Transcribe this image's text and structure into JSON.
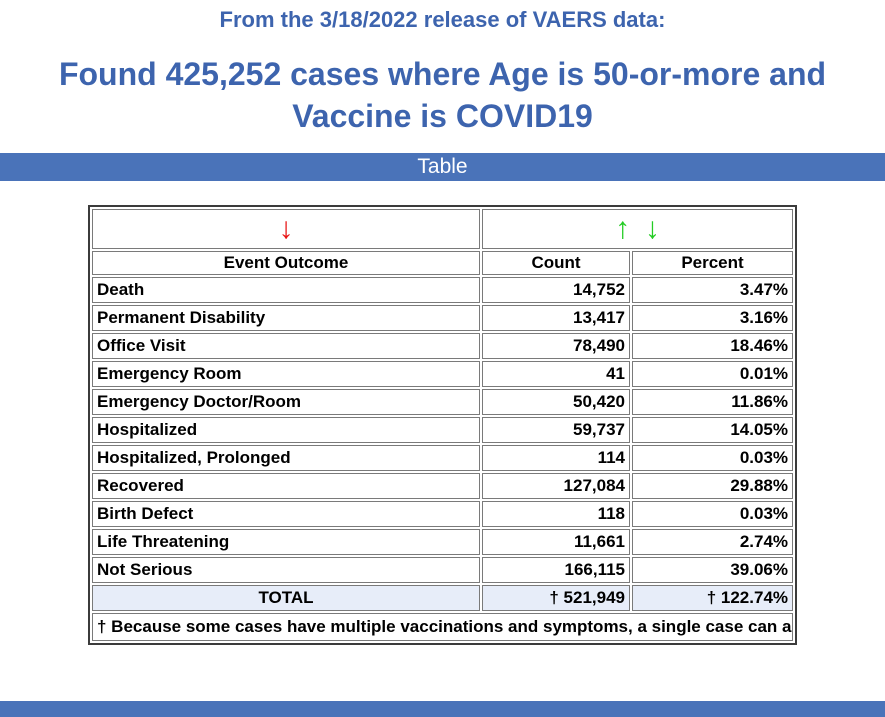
{
  "page": {
    "release_line": "From the 3/18/2022 release of VAERS data:",
    "title": "Found 425,252 cases where Age is 50-or-more and Vaccine is COVID19",
    "section_bar_label": "Table"
  },
  "colors": {
    "heading_blue": "#3d64ae",
    "section_bar_blue": "#4a73b9",
    "total_row_bg": "#e7edf9",
    "sort_arrow_red": "#e81515",
    "sort_arrow_green": "#24cc24"
  },
  "table": {
    "sort_icons": {
      "outcome_desc": "↓",
      "count_asc": "↑",
      "count_desc": "↓"
    },
    "columns": {
      "outcome": "Event Outcome",
      "count": "Count",
      "percent": "Percent"
    },
    "rows": [
      {
        "outcome": "Death",
        "count": "14,752",
        "percent": "3.47%"
      },
      {
        "outcome": "Permanent Disability",
        "count": "13,417",
        "percent": "3.16%"
      },
      {
        "outcome": "Office Visit",
        "count": "78,490",
        "percent": "18.46%"
      },
      {
        "outcome": "Emergency Room",
        "count": "41",
        "percent": "0.01%"
      },
      {
        "outcome": "Emergency Doctor/Room",
        "count": "50,420",
        "percent": "11.86%"
      },
      {
        "outcome": "Hospitalized",
        "count": "59,737",
        "percent": "14.05%"
      },
      {
        "outcome": "Hospitalized, Prolonged",
        "count": "114",
        "percent": "0.03%"
      },
      {
        "outcome": "Recovered",
        "count": "127,084",
        "percent": "29.88%"
      },
      {
        "outcome": "Birth Defect",
        "count": "118",
        "percent": "0.03%"
      },
      {
        "outcome": "Life Threatening",
        "count": "11,661",
        "percent": "2.74%"
      },
      {
        "outcome": "Not Serious",
        "count": "166,115",
        "percent": "39.06%"
      }
    ],
    "total": {
      "label": "TOTAL",
      "count": "† 521,949",
      "percent": "† 122.74%"
    },
    "footnote": "† Because some cases have multiple vaccinations and symptoms, a single case can account for multiple entries in this table. This is the reason why the Total Count is greater than 425252 (the number of cases found), and the Total Percentage is greater than 100."
  }
}
